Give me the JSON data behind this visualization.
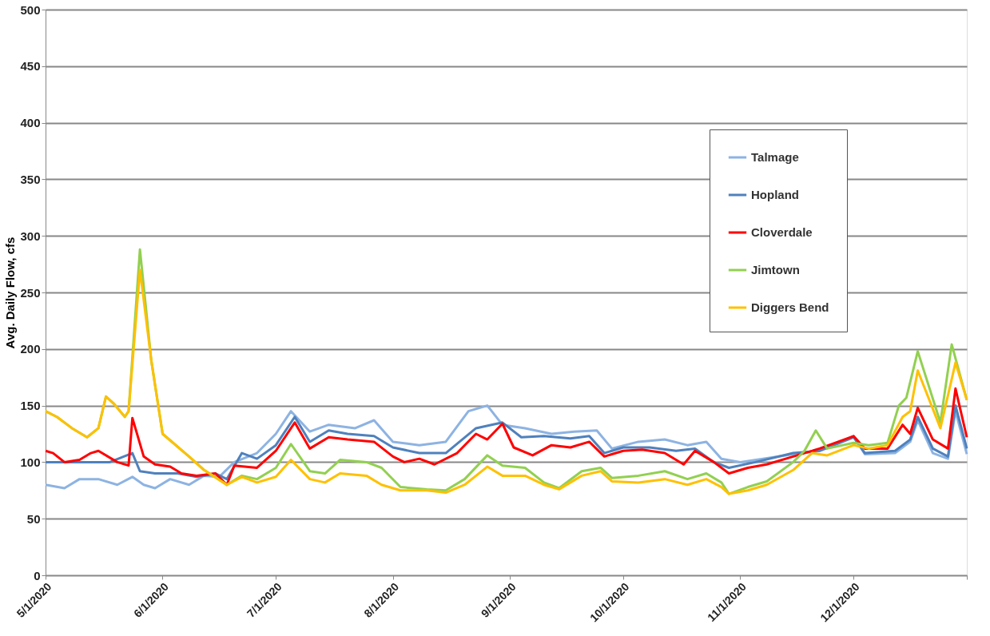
{
  "chart_data": {
    "type": "line",
    "ylabel": "Avg. Daily Flow, cfs",
    "ylim": [
      0,
      500
    ],
    "yticks": [
      0,
      50,
      100,
      150,
      200,
      250,
      300,
      350,
      400,
      450,
      500
    ],
    "xlim": [
      "2020-05-01",
      "2020-12-31"
    ],
    "xticks": [
      {
        "value": "2020-05-01",
        "label": "5/1/2020"
      },
      {
        "value": "2020-06-01",
        "label": "6/1/2020"
      },
      {
        "value": "2020-07-01",
        "label": "7/1/2020"
      },
      {
        "value": "2020-08-01",
        "label": "8/1/2020"
      },
      {
        "value": "2020-09-01",
        "label": "9/1/2020"
      },
      {
        "value": "2020-10-01",
        "label": "10/1/2020"
      },
      {
        "value": "2020-11-01",
        "label": "11/1/2020"
      },
      {
        "value": "2020-12-01",
        "label": "12/1/2020"
      },
      {
        "value": "2020-12-31",
        "label": null
      }
    ],
    "grid": "y",
    "legend": "top right",
    "marker": "none",
    "line_style": "solid",
    "series": [
      {
        "name": "Talmage",
        "color": "#8db3e2",
        "x": [
          "2020-05-01",
          "2020-05-06",
          "2020-05-10",
          "2020-05-15",
          "2020-05-20",
          "2020-05-24",
          "2020-05-27",
          "2020-05-30",
          "2020-06-03",
          "2020-06-08",
          "2020-06-12",
          "2020-06-16",
          "2020-06-20",
          "2020-06-26",
          "2020-07-01",
          "2020-07-05",
          "2020-07-10",
          "2020-07-15",
          "2020-07-22",
          "2020-07-27",
          "2020-08-01",
          "2020-08-08",
          "2020-08-15",
          "2020-08-21",
          "2020-08-26",
          "2020-08-30",
          "2020-09-05",
          "2020-09-12",
          "2020-09-18",
          "2020-09-24",
          "2020-09-28",
          "2020-10-05",
          "2020-10-12",
          "2020-10-18",
          "2020-10-23",
          "2020-10-27",
          "2020-11-01",
          "2020-11-07",
          "2020-11-15",
          "2020-11-22",
          "2020-12-01",
          "2020-12-04",
          "2020-12-12",
          "2020-12-16",
          "2020-12-18",
          "2020-12-22",
          "2020-12-26",
          "2020-12-28",
          "2020-12-31"
        ],
        "values": [
          80,
          77,
          85,
          85,
          80,
          87,
          80,
          77,
          85,
          80,
          88,
          87,
          100,
          108,
          125,
          145,
          127,
          133,
          130,
          137,
          118,
          115,
          118,
          145,
          150,
          133,
          130,
          125,
          127,
          128,
          112,
          118,
          120,
          115,
          118,
          103,
          100,
          103,
          107,
          110,
          123,
          107,
          108,
          118,
          137,
          108,
          103,
          145,
          107
        ]
      },
      {
        "name": "Hopland",
        "color": "#4f81bd",
        "x": [
          "2020-05-01",
          "2020-05-06",
          "2020-05-12",
          "2020-05-18",
          "2020-05-24",
          "2020-05-26",
          "2020-05-30",
          "2020-06-05",
          "2020-06-10",
          "2020-06-15",
          "2020-06-18",
          "2020-06-22",
          "2020-06-26",
          "2020-07-01",
          "2020-07-06",
          "2020-07-10",
          "2020-07-15",
          "2020-07-20",
          "2020-07-27",
          "2020-08-01",
          "2020-08-08",
          "2020-08-15",
          "2020-08-23",
          "2020-08-30",
          "2020-09-04",
          "2020-09-10",
          "2020-09-17",
          "2020-09-22",
          "2020-09-26",
          "2020-10-01",
          "2020-10-08",
          "2020-10-15",
          "2020-10-20",
          "2020-10-25",
          "2020-10-29",
          "2020-11-05",
          "2020-11-15",
          "2020-11-22",
          "2020-12-01",
          "2020-12-04",
          "2020-12-12",
          "2020-12-16",
          "2020-12-18",
          "2020-12-22",
          "2020-12-26",
          "2020-12-28",
          "2020-12-31"
        ],
        "values": [
          100,
          100,
          100,
          100,
          108,
          92,
          90,
          90,
          87,
          90,
          85,
          108,
          103,
          115,
          140,
          118,
          128,
          125,
          123,
          113,
          108,
          108,
          130,
          135,
          122,
          123,
          121,
          123,
          108,
          113,
          113,
          110,
          112,
          100,
          95,
          100,
          108,
          110,
          122,
          108,
          110,
          120,
          140,
          112,
          105,
          150,
          112
        ]
      },
      {
        "name": "Cloverdale",
        "color": "#ff0000",
        "x": [
          "2020-05-01",
          "2020-05-03",
          "2020-05-06",
          "2020-05-10",
          "2020-05-13",
          "2020-05-15",
          "2020-05-20",
          "2020-05-23",
          "2020-05-24",
          "2020-05-27",
          "2020-05-30",
          "2020-06-03",
          "2020-06-06",
          "2020-06-10",
          "2020-06-15",
          "2020-06-18",
          "2020-06-20",
          "2020-06-26",
          "2020-07-01",
          "2020-07-06",
          "2020-07-10",
          "2020-07-15",
          "2020-07-20",
          "2020-07-27",
          "2020-08-01",
          "2020-08-04",
          "2020-08-08",
          "2020-08-12",
          "2020-08-18",
          "2020-08-23",
          "2020-08-26",
          "2020-08-30",
          "2020-09-02",
          "2020-09-07",
          "2020-09-12",
          "2020-09-17",
          "2020-09-22",
          "2020-09-26",
          "2020-10-01",
          "2020-10-06",
          "2020-10-12",
          "2020-10-17",
          "2020-10-20",
          "2020-10-25",
          "2020-10-29",
          "2020-11-03",
          "2020-11-08",
          "2020-11-15",
          "2020-11-22",
          "2020-12-01",
          "2020-12-04",
          "2020-12-10",
          "2020-12-14",
          "2020-12-16",
          "2020-12-18",
          "2020-12-22",
          "2020-12-26",
          "2020-12-28",
          "2020-12-31"
        ],
        "values": [
          110,
          108,
          100,
          102,
          108,
          110,
          100,
          97,
          139,
          105,
          98,
          96,
          90,
          88,
          90,
          80,
          97,
          95,
          110,
          135,
          112,
          122,
          120,
          118,
          105,
          100,
          103,
          98,
          108,
          125,
          120,
          134,
          113,
          106,
          115,
          113,
          118,
          105,
          110,
          111,
          108,
          98,
          110,
          100,
          90,
          95,
          98,
          105,
          112,
          123,
          112,
          112,
          133,
          125,
          148,
          120,
          112,
          165,
          122
        ]
      },
      {
        "name": "Jimtown",
        "color": "#92d050",
        "x": [
          "2020-05-01",
          "2020-05-04",
          "2020-05-08",
          "2020-05-12",
          "2020-05-15",
          "2020-05-17",
          "2020-05-19",
          "2020-05-22",
          "2020-05-23",
          "2020-05-26",
          "2020-05-29",
          "2020-06-01",
          "2020-06-08",
          "2020-06-12",
          "2020-06-18",
          "2020-06-22",
          "2020-06-26",
          "2020-07-01",
          "2020-07-05",
          "2020-07-10",
          "2020-07-14",
          "2020-07-18",
          "2020-07-25",
          "2020-07-29",
          "2020-08-03",
          "2020-08-10",
          "2020-08-15",
          "2020-08-20",
          "2020-08-26",
          "2020-08-30",
          "2020-09-05",
          "2020-09-10",
          "2020-09-14",
          "2020-09-20",
          "2020-09-25",
          "2020-09-28",
          "2020-10-05",
          "2020-10-12",
          "2020-10-18",
          "2020-10-23",
          "2020-10-27",
          "2020-10-29",
          "2020-11-03",
          "2020-11-08",
          "2020-11-15",
          "2020-11-18",
          "2020-11-21",
          "2020-11-24",
          "2020-12-01",
          "2020-12-05",
          "2020-12-10",
          "2020-12-13",
          "2020-12-15",
          "2020-12-18",
          "2020-12-24",
          "2020-12-27",
          "2020-12-31"
        ],
        "values": [
          145,
          140,
          130,
          122,
          130,
          158,
          152,
          140,
          145,
          288,
          190,
          125,
          105,
          93,
          80,
          88,
          85,
          95,
          116,
          92,
          90,
          102,
          100,
          95,
          78,
          76,
          75,
          85,
          106,
          97,
          95,
          82,
          77,
          92,
          95,
          86,
          88,
          92,
          85,
          90,
          82,
          72,
          78,
          83,
          100,
          110,
          128,
          112,
          117,
          115,
          117,
          150,
          157,
          198,
          135,
          204,
          155
        ]
      },
      {
        "name": "Diggers Bend",
        "color": "#ffc000",
        "x": [
          "2020-05-01",
          "2020-05-04",
          "2020-05-08",
          "2020-05-12",
          "2020-05-15",
          "2020-05-17",
          "2020-05-19",
          "2020-05-22",
          "2020-05-23",
          "2020-05-26",
          "2020-05-29",
          "2020-06-01",
          "2020-06-08",
          "2020-06-12",
          "2020-06-18",
          "2020-06-22",
          "2020-06-26",
          "2020-07-01",
          "2020-07-05",
          "2020-07-10",
          "2020-07-14",
          "2020-07-18",
          "2020-07-25",
          "2020-07-29",
          "2020-08-03",
          "2020-08-10",
          "2020-08-15",
          "2020-08-20",
          "2020-08-26",
          "2020-08-30",
          "2020-09-05",
          "2020-09-10",
          "2020-09-14",
          "2020-09-20",
          "2020-09-25",
          "2020-09-28",
          "2020-10-05",
          "2020-10-12",
          "2020-10-18",
          "2020-10-23",
          "2020-10-27",
          "2020-10-29",
          "2020-11-03",
          "2020-11-08",
          "2020-11-15",
          "2020-11-20",
          "2020-11-24",
          "2020-12-01",
          "2020-12-05",
          "2020-12-10",
          "2020-12-14",
          "2020-12-16",
          "2020-12-18",
          "2020-12-24",
          "2020-12-28",
          "2020-12-31"
        ],
        "values": [
          145,
          140,
          130,
          122,
          130,
          158,
          152,
          140,
          145,
          270,
          190,
          125,
          105,
          93,
          80,
          87,
          82,
          87,
          102,
          85,
          82,
          90,
          88,
          80,
          75,
          75,
          73,
          80,
          96,
          88,
          88,
          80,
          76,
          88,
          92,
          83,
          82,
          85,
          80,
          85,
          78,
          72,
          75,
          80,
          93,
          108,
          106,
          115,
          112,
          115,
          140,
          145,
          181,
          130,
          188,
          155
        ]
      }
    ]
  }
}
